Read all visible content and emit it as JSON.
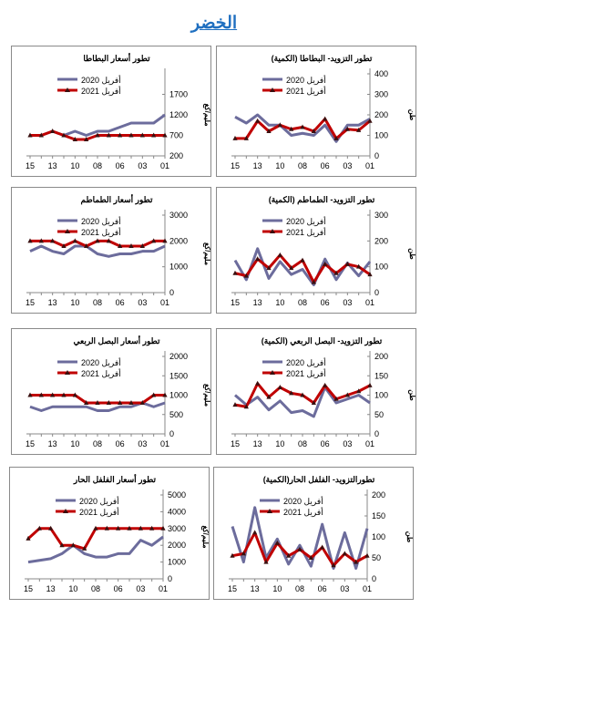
{
  "page_title": "الخضر",
  "colors": {
    "series_2020": "#6c6c9c",
    "series_2021": "#c00000",
    "marker": "#3a1010",
    "title": "#1f6fc0"
  },
  "legend": [
    "أفريل 2020",
    "أفريل 2021"
  ],
  "chart_data": [
    {
      "type": "line",
      "title": "تطور التزويد- البطاطا (الكمية)",
      "ylabel": "طن",
      "ylim": [
        0,
        400
      ],
      "yticks": [
        0,
        100,
        200,
        300,
        400
      ],
      "x_tick_labels": [
        "15",
        "13",
        "10",
        "08",
        "06",
        "03",
        "01"
      ],
      "series": [
        {
          "name": "أفريل 2020",
          "values": [
            190,
            160,
            200,
            150,
            150,
            100,
            110,
            100,
            150,
            70,
            150,
            150,
            180
          ]
        },
        {
          "name": "أفريل 2021",
          "values": [
            85,
            85,
            170,
            120,
            150,
            130,
            140,
            120,
            180,
            85,
            130,
            125,
            170
          ]
        }
      ]
    },
    {
      "type": "line",
      "title": "تطور أسعار البطاطا",
      "ylabel": "مليم/كغ",
      "ylim": [
        200,
        2200
      ],
      "yticks": [
        200,
        700,
        1200,
        1700
      ],
      "x_tick_labels": [
        "15",
        "13",
        "10",
        "08",
        "06",
        "03",
        "01"
      ],
      "series": [
        {
          "name": "أفريل 2020",
          "values": [
            700,
            700,
            800,
            700,
            800,
            700,
            800,
            800,
            900,
            1000,
            1000,
            1000,
            1200
          ]
        },
        {
          "name": "أفريل 2021",
          "values": [
            700,
            700,
            800,
            700,
            600,
            600,
            700,
            700,
            700,
            700,
            700,
            700,
            700
          ]
        }
      ]
    },
    {
      "type": "line",
      "title": "تطور التزويد- الطماطم (الكمية)",
      "ylabel": "طن",
      "ylim": [
        0,
        300
      ],
      "yticks": [
        0,
        100,
        200,
        300
      ],
      "x_tick_labels": [
        "15",
        "13",
        "10",
        "08",
        "06",
        "03",
        "01"
      ],
      "series": [
        {
          "name": "أفريل 2020",
          "values": [
            125,
            50,
            170,
            55,
            120,
            70,
            90,
            30,
            130,
            50,
            115,
            65,
            120
          ]
        },
        {
          "name": "أفريل 2021",
          "values": [
            75,
            65,
            130,
            95,
            145,
            95,
            125,
            40,
            110,
            75,
            110,
            100,
            70
          ]
        }
      ]
    },
    {
      "type": "line",
      "title": "تطور أسعار الطماطم",
      "ylabel": "مليم/كغ",
      "ylim": [
        0,
        3000
      ],
      "yticks": [
        0,
        1000,
        2000,
        3000
      ],
      "x_tick_labels": [
        "15",
        "13",
        "10",
        "08",
        "06",
        "03",
        "01"
      ],
      "series": [
        {
          "name": "أفريل 2020",
          "values": [
            1600,
            1800,
            1600,
            1500,
            1800,
            1800,
            1500,
            1400,
            1500,
            1500,
            1600,
            1600,
            1800
          ]
        },
        {
          "name": "أفريل 2021",
          "values": [
            2000,
            2000,
            2000,
            1800,
            2000,
            1800,
            2000,
            2000,
            1800,
            1800,
            1800,
            2000,
            2000
          ]
        }
      ]
    },
    {
      "type": "line",
      "title": "تطور التزويد- البصل الربعي (الكمية)",
      "ylabel": "طن",
      "ylim": [
        0,
        200
      ],
      "yticks": [
        0,
        50,
        100,
        150,
        200
      ],
      "x_tick_labels": [
        "15",
        "13",
        "10",
        "08",
        "06",
        "03",
        "01"
      ],
      "series": [
        {
          "name": "أفريل 2020",
          "values": [
            100,
            75,
            95,
            62,
            85,
            55,
            60,
            45,
            120,
            80,
            90,
            100,
            80
          ]
        },
        {
          "name": "أفريل 2021",
          "values": [
            75,
            70,
            130,
            95,
            120,
            105,
            100,
            80,
            125,
            90,
            100,
            110,
            125
          ]
        }
      ]
    },
    {
      "type": "line",
      "title": "تطور أسعار البصل الربعي",
      "ylabel": "مليم/كغ",
      "ylim": [
        0,
        2000
      ],
      "yticks": [
        0,
        500,
        1000,
        1500,
        2000
      ],
      "x_tick_labels": [
        "15",
        "13",
        "10",
        "08",
        "06",
        "03",
        "01"
      ],
      "series": [
        {
          "name": "أفريل 2020",
          "values": [
            700,
            600,
            700,
            700,
            700,
            700,
            600,
            600,
            700,
            700,
            800,
            700,
            800
          ]
        },
        {
          "name": "أفريل 2021",
          "values": [
            1000,
            1000,
            1000,
            1000,
            1000,
            800,
            800,
            800,
            800,
            800,
            800,
            1000,
            1000
          ]
        }
      ]
    },
    {
      "type": "line",
      "title": "تطورالتزويد- الفلفل الحار(الكمية)",
      "ylabel": "طن",
      "ylim": [
        0,
        200
      ],
      "yticks": [
        0,
        50,
        100,
        150,
        200
      ],
      "x_tick_labels": [
        "15",
        "13",
        "10",
        "08",
        "06",
        "03",
        "01"
      ],
      "series": [
        {
          "name": "أفريل 2020",
          "values": [
            125,
            40,
            170,
            50,
            95,
            35,
            80,
            30,
            130,
            25,
            110,
            25,
            120
          ]
        },
        {
          "name": "أفريل 2021",
          "values": [
            55,
            60,
            110,
            40,
            85,
            55,
            70,
            50,
            75,
            32,
            60,
            40,
            55
          ]
        }
      ]
    },
    {
      "type": "line",
      "title": "تطور أسعار الفلفل الحار",
      "ylabel": "مليم/كغ",
      "ylim": [
        0,
        5000
      ],
      "yticks": [
        0,
        1000,
        2000,
        3000,
        4000,
        5000
      ],
      "x_tick_labels": [
        "15",
        "13",
        "10",
        "08",
        "06",
        "03",
        "01"
      ],
      "series": [
        {
          "name": "أفريل 2020",
          "values": [
            1000,
            1100,
            1200,
            1500,
            2000,
            1500,
            1300,
            1300,
            1500,
            1500,
            2300,
            2000,
            2500
          ]
        },
        {
          "name": "أفريل 2021",
          "values": [
            2400,
            3000,
            3000,
            2000,
            2000,
            1800,
            3000,
            3000,
            3000,
            3000,
            3000,
            3000,
            3000
          ]
        }
      ]
    }
  ]
}
